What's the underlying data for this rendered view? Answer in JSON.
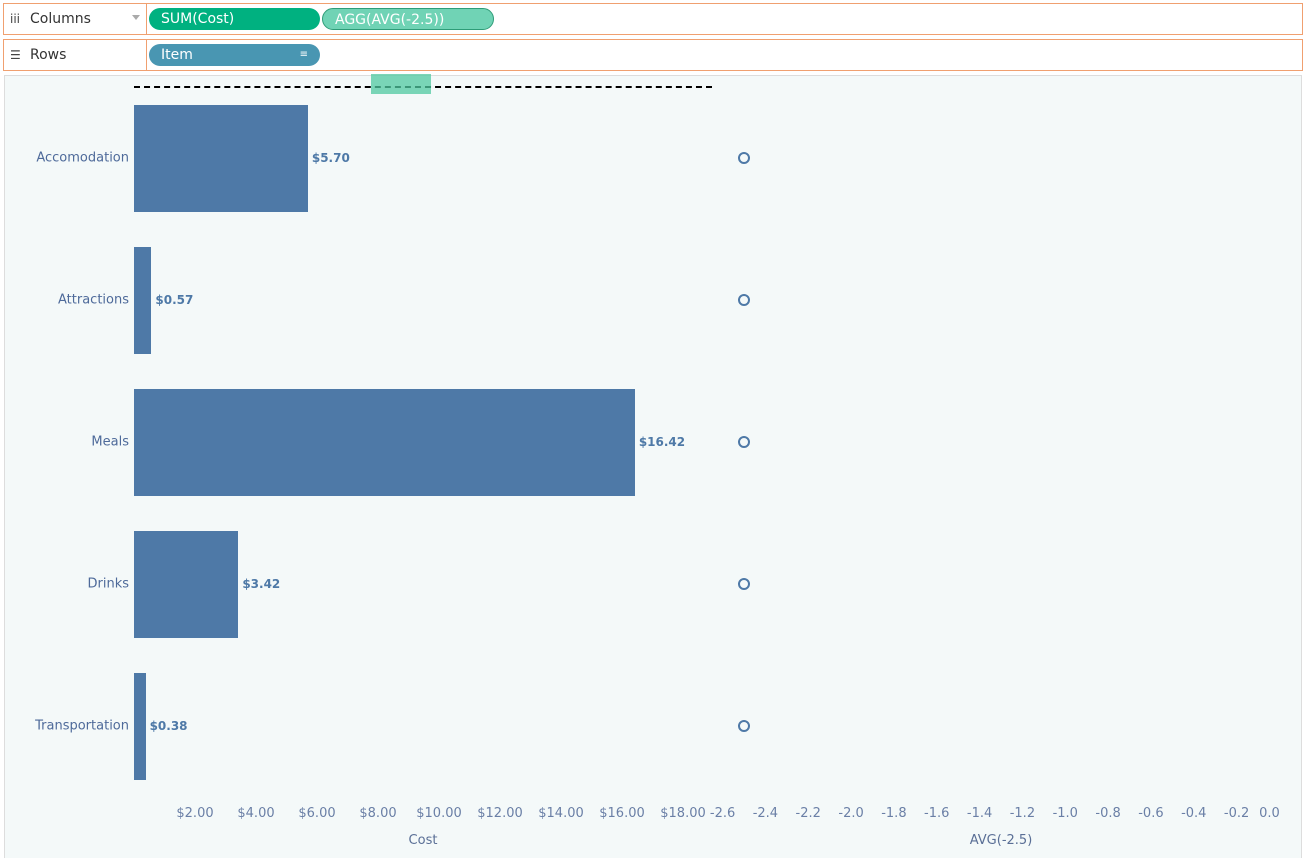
{
  "shelves": {
    "columns": {
      "label": "Columns",
      "icon": "columns-icon",
      "pills": [
        "SUM(Cost)",
        "AGG(AVG(-2.5))"
      ]
    },
    "rows": {
      "label": "Rows",
      "icon": "rows-icon",
      "pills": [
        "Item"
      ]
    }
  },
  "colors": {
    "bar": "#4e79a7",
    "measure_pill": "#00b180",
    "agg_pill": "#70d3b5",
    "dim_pill": "#4996b2",
    "shelf_border": "#f0a070"
  },
  "chart_data": [
    {
      "type": "bar",
      "orientation": "horizontal",
      "categories": [
        "Accomodation",
        "Attractions",
        "Meals",
        "Drinks",
        "Transportation"
      ],
      "values": [
        5.7,
        0.57,
        16.42,
        3.42,
        0.38
      ],
      "data_labels": [
        "$5.70",
        "$0.57",
        "$16.42",
        "$3.42",
        "$0.38"
      ],
      "xlabel": "Cost",
      "xlim": [
        0,
        18.95
      ],
      "xticks": [
        2,
        4,
        6,
        8,
        10,
        12,
        14,
        16,
        18
      ],
      "xtick_labels": [
        "$2.00",
        "$4.00",
        "$6.00",
        "$8.00",
        "$10.00",
        "$12.00",
        "$14.00",
        "$16.00",
        "$18.00"
      ]
    },
    {
      "type": "scatter",
      "categories": [
        "Accomodation",
        "Attractions",
        "Meals",
        "Drinks",
        "Transportation"
      ],
      "values": [
        -2.5,
        -2.5,
        -2.5,
        -2.5,
        -2.5
      ],
      "xlabel": "AVG(-2.5)",
      "xlim": [
        -2.64,
        0.04
      ],
      "xticks": [
        -2.6,
        -2.4,
        -2.2,
        -2.0,
        -1.8,
        -1.6,
        -1.4,
        -1.2,
        -1.0,
        -0.8,
        -0.6,
        -0.4,
        -0.2,
        0.0
      ],
      "xtick_labels": [
        "-2.6",
        "-2.4",
        "-2.2",
        "-2.0",
        "-1.8",
        "-1.6",
        "-1.4",
        "-1.2",
        "-1.0",
        "-0.8",
        "-0.6",
        "-0.4",
        "-0.2",
        "0.0"
      ]
    }
  ]
}
